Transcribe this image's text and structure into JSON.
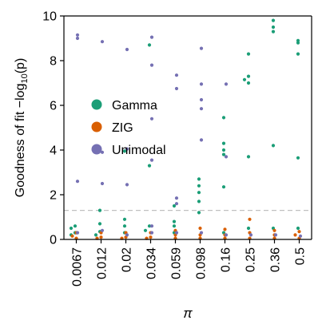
{
  "chart_data": {
    "type": "scatter",
    "xlabel": "π",
    "ylabel": "Goodness of fit −log10(p)",
    "ylabel_parts": {
      "main": "Goodness of fit −log",
      "sub": "10",
      "tail": "(p)"
    },
    "categories": [
      "0.0067",
      "0.012",
      "0.02",
      "0.034",
      "0.059",
      "0.098",
      "0.16",
      "0.25",
      "0.36",
      "0.5"
    ],
    "ylim": [
      0,
      10
    ],
    "yticks": [
      "0",
      "2",
      "4",
      "6",
      "8",
      "10"
    ],
    "reference_line": 1.3,
    "legend_position": "center-left",
    "series": [
      {
        "name": "Gamma",
        "color": "#1b9e77",
        "points": [
          [
            0,
            0.6
          ],
          [
            0,
            0.5
          ],
          [
            0,
            0.3
          ],
          [
            0,
            0.2
          ],
          [
            1,
            1.3
          ],
          [
            1,
            0.7
          ],
          [
            1,
            0.35
          ],
          [
            1,
            0.2
          ],
          [
            2,
            3.95
          ],
          [
            2,
            0.9
          ],
          [
            2,
            0.6
          ],
          [
            2,
            0.3
          ],
          [
            3,
            8.7
          ],
          [
            3,
            3.3
          ],
          [
            3,
            0.6
          ],
          [
            3,
            0.4
          ],
          [
            4,
            1.5
          ],
          [
            4,
            0.8
          ],
          [
            4,
            0.6
          ],
          [
            4,
            0.3
          ],
          [
            5,
            2.7
          ],
          [
            5,
            2.4
          ],
          [
            5,
            2.1
          ],
          [
            5,
            1.7
          ],
          [
            5,
            1.2
          ],
          [
            6,
            5.45
          ],
          [
            6,
            4.3
          ],
          [
            6,
            4.0
          ],
          [
            6,
            3.8
          ],
          [
            6,
            2.35
          ],
          [
            6,
            0.3
          ],
          [
            7,
            8.3
          ],
          [
            7,
            7.3
          ],
          [
            7,
            7.15
          ],
          [
            7,
            7.0
          ],
          [
            7,
            3.7
          ],
          [
            7,
            0.5
          ],
          [
            8,
            9.8
          ],
          [
            8,
            9.5
          ],
          [
            8,
            9.3
          ],
          [
            8,
            4.2
          ],
          [
            8,
            0.5
          ],
          [
            9,
            8.9
          ],
          [
            9,
            8.8
          ],
          [
            9,
            8.3
          ],
          [
            9,
            3.65
          ],
          [
            9,
            0.5
          ]
        ]
      },
      {
        "name": "ZIG",
        "color": "#d95f02",
        "points": [
          [
            0,
            0.3
          ],
          [
            0,
            0.15
          ],
          [
            0,
            0.05
          ],
          [
            1,
            0.3
          ],
          [
            1,
            0.1
          ],
          [
            1,
            0.05
          ],
          [
            2,
            0.3
          ],
          [
            2,
            0.1
          ],
          [
            2,
            0.05
          ],
          [
            3,
            0.3
          ],
          [
            3,
            0.1
          ],
          [
            3,
            0.05
          ],
          [
            4,
            0.4
          ],
          [
            4,
            0.2
          ],
          [
            4,
            0.05
          ],
          [
            5,
            0.5
          ],
          [
            5,
            0.2
          ],
          [
            5,
            0.05
          ],
          [
            6,
            0.45
          ],
          [
            6,
            0.2
          ],
          [
            6,
            0.05
          ],
          [
            7,
            0.9
          ],
          [
            7,
            0.3
          ],
          [
            7,
            0.05
          ],
          [
            8,
            0.4
          ],
          [
            8,
            0.2
          ],
          [
            8,
            0.05
          ],
          [
            9,
            0.35
          ],
          [
            9,
            0.2
          ],
          [
            9,
            0.05
          ]
        ]
      },
      {
        "name": "Unimodal",
        "color": "#7570b3",
        "points": [
          [
            0,
            9.15
          ],
          [
            0,
            9.0
          ],
          [
            0,
            2.6
          ],
          [
            0,
            0.3
          ],
          [
            1,
            8.85
          ],
          [
            1,
            3.9
          ],
          [
            1,
            2.5
          ],
          [
            1,
            0.4
          ],
          [
            2,
            8.5
          ],
          [
            2,
            4.05
          ],
          [
            2,
            2.45
          ],
          [
            2,
            0.2
          ],
          [
            3,
            9.05
          ],
          [
            3,
            7.8
          ],
          [
            3,
            5.4
          ],
          [
            3,
            3.55
          ],
          [
            3,
            0.6
          ],
          [
            3,
            0.3
          ],
          [
            4,
            7.35
          ],
          [
            4,
            6.75
          ],
          [
            4,
            1.85
          ],
          [
            4,
            1.6
          ],
          [
            4,
            0.3
          ],
          [
            5,
            8.55
          ],
          [
            5,
            6.95
          ],
          [
            5,
            6.25
          ],
          [
            5,
            5.85
          ],
          [
            5,
            4.45
          ],
          [
            5,
            0.3
          ],
          [
            6,
            6.95
          ],
          [
            6,
            3.7
          ],
          [
            6,
            0.2
          ],
          [
            7,
            0.2
          ],
          [
            8,
            0.2
          ],
          [
            9,
            0.15
          ]
        ]
      }
    ]
  }
}
